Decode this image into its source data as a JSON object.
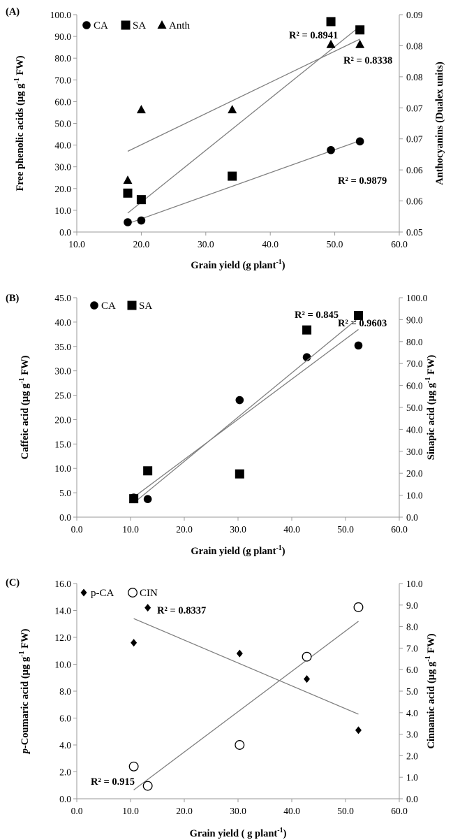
{
  "chart_data": [
    {
      "type": "scatter",
      "panel_label": "(A)",
      "xlabel": "Grain yield (g plant",
      "xlabel_sup": "-1",
      "xlabel_end": ")",
      "ylabel": "Free phenolic acids (µg g",
      "ylabel_sup": "-1",
      "ylabel_end": " FW)",
      "y2label": "Anthocyanins (Dualex units)",
      "xlim": [
        10,
        60
      ],
      "ylim": [
        0,
        100
      ],
      "y2lim": [
        0.05,
        0.09
      ],
      "x_ticks": [
        "10.0",
        "20.0",
        "30.0",
        "40.0",
        "50.0",
        "60.0"
      ],
      "y_ticks": [
        "0.0",
        "10.0",
        "20.0",
        "30.0",
        "40.0",
        "50.0",
        "60.0",
        "70.0",
        "80.0",
        "90.0",
        "100.0"
      ],
      "y2_ticks": [
        "0.05",
        "0.06",
        "0.06",
        "0.07",
        "0.07",
        "0.08",
        "0.08",
        "0.09"
      ],
      "legend_position": "top-left",
      "grid": false,
      "series": [
        {
          "name": "CA",
          "marker": "circle",
          "axis": "left",
          "x": [
            17.9,
            20.0,
            49.4,
            53.9
          ],
          "y": [
            4.5,
            5.3,
            37.7,
            41.7
          ],
          "r2": "R² = 0.9879"
        },
        {
          "name": "SA",
          "marker": "square",
          "axis": "left",
          "x": [
            17.9,
            20.0,
            34.1,
            49.4,
            53.9
          ],
          "y": [
            17.9,
            14.9,
            25.7,
            96.8,
            93.0
          ],
          "r2": "R² = 0.8941"
        },
        {
          "name": "Anth",
          "marker": "triangle",
          "axis": "right",
          "x": [
            17.9,
            20.0,
            34.1,
            49.4,
            53.9
          ],
          "y": [
            0.0595,
            0.0725,
            0.0725,
            0.0845,
            0.0845
          ],
          "r2": "R² = 0.8338"
        }
      ]
    },
    {
      "type": "scatter",
      "panel_label": "(B)",
      "xlabel": "Grain yield (g plant",
      "xlabel_sup": "-1",
      "xlabel_end": ")",
      "ylabel": "Caffeic acid (µg g",
      "ylabel_sup": "-1",
      "ylabel_end": " FW)",
      "y2label": "Sinapic acid (µg g",
      "y2label_sup": "-1",
      "y2label_end": " FW)",
      "xlim": [
        0,
        60
      ],
      "ylim": [
        0,
        45
      ],
      "y2lim": [
        0,
        100
      ],
      "x_ticks": [
        "0.0",
        "10.0",
        "20.0",
        "30.0",
        "40.0",
        "50.0",
        "60.0"
      ],
      "y_ticks": [
        "0.0",
        "5.0",
        "10.0",
        "15.0",
        "20.0",
        "25.0",
        "30.0",
        "35.0",
        "40.0",
        "45.0"
      ],
      "y2_ticks": [
        "0.0",
        "10.0",
        "20.0",
        "30.0",
        "40.0",
        "50.0",
        "60.0",
        "70.0",
        "80.0",
        "90.0",
        "100.0"
      ],
      "legend_position": "top-left",
      "grid": false,
      "series": [
        {
          "name": "CA",
          "marker": "circle",
          "axis": "left",
          "x": [
            10.6,
            13.2,
            30.3,
            42.8,
            52.4
          ],
          "y": [
            4.0,
            3.7,
            24.0,
            32.8,
            35.2
          ],
          "r2": "R² = 0.9603"
        },
        {
          "name": "SA",
          "marker": "square",
          "axis": "right",
          "x": [
            10.6,
            13.2,
            30.3,
            42.8,
            52.4
          ],
          "y": [
            8.4,
            21.1,
            19.7,
            85.3,
            91.9
          ],
          "r2": "R² = 0.845"
        }
      ]
    },
    {
      "type": "scatter",
      "panel_label": "(C)",
      "xlabel": "Grain yield ( g plant",
      "xlabel_sup": "-1",
      "xlabel_end": ")",
      "ylabel_italic": "p",
      "ylabel": "-Coumaric acid (µg g",
      "ylabel_sup": "-1",
      "ylabel_end": " FW)",
      "y2label": "Cinnamic acid (µg g",
      "y2label_sup": "-1",
      "y2label_end": " FW)",
      "xlim": [
        0,
        60
      ],
      "ylim": [
        0,
        16
      ],
      "y2lim": [
        0,
        10
      ],
      "x_ticks": [
        "0.0",
        "10.0",
        "20.0",
        "30.0",
        "40.0",
        "50.0",
        "60.0"
      ],
      "y_ticks": [
        "0.0",
        "2.0",
        "4.0",
        "6.0",
        "8.0",
        "10.0",
        "12.0",
        "14.0",
        "16.0"
      ],
      "y2_ticks": [
        "0.0",
        "1.0",
        "2.0",
        "3.0",
        "4.0",
        "5.0",
        "6.0",
        "7.0",
        "8.0",
        "9.0",
        "10.0"
      ],
      "legend_position": "top-left",
      "grid": false,
      "series": [
        {
          "name": "p-CA",
          "marker": "diamond",
          "axis": "left",
          "x": [
            10.6,
            13.2,
            30.3,
            42.8,
            52.4
          ],
          "y": [
            11.6,
            14.2,
            10.8,
            8.9,
            5.1
          ],
          "r2": "R² = 0.8337"
        },
        {
          "name": "CIN",
          "marker": "open-circle",
          "axis": "right",
          "x": [
            10.6,
            13.2,
            30.3,
            42.8,
            52.4
          ],
          "y": [
            1.5,
            0.6,
            2.5,
            6.6,
            8.9
          ],
          "r2": "R² = 0.915"
        }
      ]
    }
  ]
}
